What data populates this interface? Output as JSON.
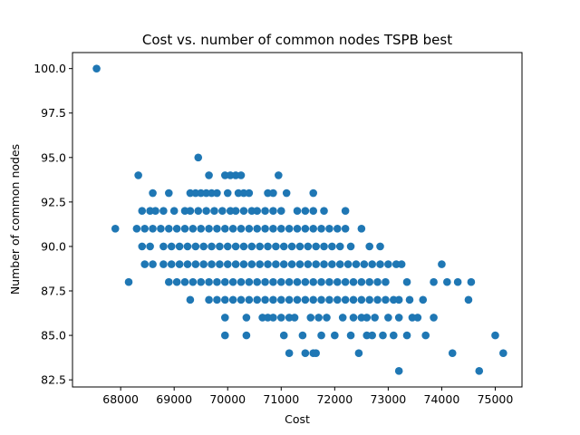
{
  "chart_data": {
    "type": "scatter",
    "title": "Cost vs. number of common nodes TSPB best",
    "xlabel": "Cost",
    "ylabel": "Number of common nodes",
    "xlim": [
      67100,
      75500
    ],
    "ylim": [
      82.1,
      100.9
    ],
    "xticks": [
      68000,
      69000,
      70000,
      71000,
      72000,
      73000,
      74000,
      75000
    ],
    "yticks": [
      82.5,
      85.0,
      87.5,
      90.0,
      92.5,
      95.0,
      97.5,
      100.0
    ],
    "xtick_labels": [
      "68000",
      "69000",
      "70000",
      "71000",
      "72000",
      "73000",
      "74000",
      "75000"
    ],
    "ytick_labels": [
      "82.5",
      "85.0",
      "87.5",
      "90.0",
      "92.5",
      "95.0",
      "97.5",
      "100.0"
    ],
    "grid": false,
    "color": "#1f77b4",
    "series": [
      {
        "points": [
          [
            67550,
            100
          ],
          [
            69450,
            95
          ],
          [
            68330,
            94
          ],
          [
            69650,
            94
          ],
          [
            69950,
            94
          ],
          [
            70050,
            94
          ],
          [
            70150,
            94
          ],
          [
            70250,
            94
          ],
          [
            70950,
            94
          ],
          [
            68600,
            93
          ],
          [
            68900,
            93
          ],
          [
            69300,
            93
          ],
          [
            69400,
            93
          ],
          [
            69500,
            93
          ],
          [
            69600,
            93
          ],
          [
            69700,
            93
          ],
          [
            69800,
            93
          ],
          [
            70000,
            93
          ],
          [
            70200,
            93
          ],
          [
            70300,
            93
          ],
          [
            70400,
            93
          ],
          [
            70750,
            93
          ],
          [
            70850,
            93
          ],
          [
            71100,
            93
          ],
          [
            71600,
            93
          ],
          [
            68400,
            92
          ],
          [
            68550,
            92
          ],
          [
            68650,
            92
          ],
          [
            68800,
            92
          ],
          [
            69000,
            92
          ],
          [
            69200,
            92
          ],
          [
            69300,
            92
          ],
          [
            69450,
            92
          ],
          [
            69600,
            92
          ],
          [
            69750,
            92
          ],
          [
            69900,
            92
          ],
          [
            70050,
            92
          ],
          [
            70150,
            92
          ],
          [
            70300,
            92
          ],
          [
            70450,
            92
          ],
          [
            70550,
            92
          ],
          [
            70700,
            92
          ],
          [
            70850,
            92
          ],
          [
            71000,
            92
          ],
          [
            71300,
            92
          ],
          [
            71450,
            92
          ],
          [
            71600,
            92
          ],
          [
            71800,
            92
          ],
          [
            72200,
            92
          ],
          [
            67900,
            91
          ],
          [
            68300,
            91
          ],
          [
            68450,
            91
          ],
          [
            68600,
            91
          ]
        ]
      },
      {
        "points": [
          [
            68750,
            91
          ],
          [
            68900,
            91
          ],
          [
            69050,
            91
          ],
          [
            69200,
            91
          ],
          [
            69350,
            91
          ],
          [
            69500,
            91
          ],
          [
            69650,
            91
          ],
          [
            69800,
            91
          ],
          [
            69950,
            91
          ],
          [
            70100,
            91
          ],
          [
            70250,
            91
          ],
          [
            70400,
            91
          ],
          [
            70550,
            91
          ],
          [
            70700,
            91
          ],
          [
            70850,
            91
          ],
          [
            71000,
            91
          ],
          [
            71150,
            91
          ],
          [
            71300,
            91
          ],
          [
            71450,
            91
          ],
          [
            71600,
            91
          ],
          [
            71750,
            91
          ],
          [
            71900,
            91
          ],
          [
            72050,
            91
          ],
          [
            72200,
            91
          ],
          [
            72500,
            91
          ],
          [
            68400,
            90
          ],
          [
            68550,
            90
          ],
          [
            68800,
            90
          ],
          [
            68950,
            90
          ],
          [
            69100,
            90
          ],
          [
            69250,
            90
          ],
          [
            69400,
            90
          ],
          [
            69550,
            90
          ],
          [
            69700,
            90
          ],
          [
            69850,
            90
          ],
          [
            70000,
            90
          ],
          [
            70150,
            90
          ],
          [
            70300,
            90
          ],
          [
            70450,
            90
          ],
          [
            70600,
            90
          ],
          [
            70750,
            90
          ],
          [
            70900,
            90
          ],
          [
            71050,
            90
          ],
          [
            71200,
            90
          ],
          [
            71350,
            90
          ],
          [
            71500,
            90
          ],
          [
            71650,
            90
          ],
          [
            71800,
            90
          ],
          [
            71950,
            90
          ],
          [
            72100,
            90
          ],
          [
            72300,
            90
          ],
          [
            72650,
            90
          ],
          [
            72850,
            90
          ],
          [
            68450,
            89
          ],
          [
            68600,
            89
          ],
          [
            68800,
            89
          ],
          [
            68950,
            89
          ],
          [
            69100,
            89
          ],
          [
            69250,
            89
          ],
          [
            69400,
            89
          ],
          [
            69550,
            89
          ],
          [
            69700,
            89
          ],
          [
            69850,
            89
          ],
          [
            70000,
            89
          ],
          [
            70150,
            89
          ],
          [
            70300,
            89
          ],
          [
            70450,
            89
          ],
          [
            70600,
            89
          ],
          [
            70750,
            89
          ],
          [
            70900,
            89
          ],
          [
            71050,
            89
          ],
          [
            71200,
            89
          ],
          [
            71350,
            89
          ],
          [
            71500,
            89
          ],
          [
            71650,
            89
          ],
          [
            71800,
            89
          ],
          [
            71950,
            89
          ],
          [
            72100,
            89
          ],
          [
            72250,
            89
          ],
          [
            72400,
            89
          ],
          [
            72550,
            89
          ],
          [
            72700,
            89
          ],
          [
            72850,
            89
          ],
          [
            73000,
            89
          ],
          [
            73150,
            89
          ],
          [
            73250,
            89
          ],
          [
            74000,
            89
          ],
          [
            68150,
            88
          ],
          [
            68900,
            88
          ],
          [
            69050,
            88
          ],
          [
            69200,
            88
          ],
          [
            69350,
            88
          ],
          [
            69500,
            88
          ],
          [
            69650,
            88
          ],
          [
            69800,
            88
          ],
          [
            69950,
            88
          ],
          [
            70100,
            88
          ],
          [
            70250,
            88
          ],
          [
            70400,
            88
          ],
          [
            70550,
            88
          ],
          [
            70700,
            88
          ],
          [
            70850,
            88
          ],
          [
            71000,
            88
          ],
          [
            71150,
            88
          ],
          [
            71300,
            88
          ],
          [
            71450,
            88
          ],
          [
            71600,
            88
          ],
          [
            71750,
            88
          ],
          [
            71900,
            88
          ],
          [
            72050,
            88
          ],
          [
            72200,
            88
          ],
          [
            72350,
            88
          ],
          [
            72500,
            88
          ],
          [
            72650,
            88
          ],
          [
            72800,
            88
          ],
          [
            72950,
            88
          ],
          [
            73350,
            88
          ],
          [
            73850,
            88
          ],
          [
            74100,
            88
          ],
          [
            74300,
            88
          ],
          [
            74550,
            88
          ]
        ]
      },
      {
        "points": [
          [
            69300,
            87
          ],
          [
            69650,
            87
          ],
          [
            69800,
            87
          ],
          [
            69950,
            87
          ],
          [
            70100,
            87
          ],
          [
            70250,
            87
          ],
          [
            70400,
            87
          ],
          [
            70550,
            87
          ],
          [
            70700,
            87
          ],
          [
            70850,
            87
          ],
          [
            71000,
            87
          ],
          [
            71150,
            87
          ],
          [
            71300,
            87
          ],
          [
            71450,
            87
          ],
          [
            71600,
            87
          ],
          [
            71750,
            87
          ],
          [
            71900,
            87
          ],
          [
            72050,
            87
          ],
          [
            72200,
            87
          ],
          [
            72350,
            87
          ],
          [
            72500,
            87
          ],
          [
            72650,
            87
          ],
          [
            72800,
            87
          ],
          [
            72950,
            87
          ],
          [
            73100,
            87
          ],
          [
            73200,
            87
          ],
          [
            73400,
            87
          ],
          [
            73650,
            87
          ],
          [
            74500,
            87
          ],
          [
            69950,
            86
          ],
          [
            70350,
            86
          ],
          [
            70650,
            86
          ],
          [
            70750,
            86
          ],
          [
            70850,
            86
          ],
          [
            71000,
            86
          ],
          [
            71150,
            86
          ],
          [
            71250,
            86
          ],
          [
            71550,
            86
          ],
          [
            71700,
            86
          ],
          [
            71850,
            86
          ],
          [
            72150,
            86
          ],
          [
            72350,
            86
          ],
          [
            72500,
            86
          ],
          [
            72600,
            86
          ],
          [
            72750,
            86
          ],
          [
            73000,
            86
          ],
          [
            73200,
            86
          ],
          [
            73450,
            86
          ],
          [
            73550,
            86
          ],
          [
            73850,
            86
          ],
          [
            69950,
            85
          ],
          [
            70350,
            85
          ],
          [
            71050,
            85
          ],
          [
            71400,
            85
          ],
          [
            71750,
            85
          ],
          [
            72000,
            85
          ],
          [
            72300,
            85
          ],
          [
            72600,
            85
          ],
          [
            72700,
            85
          ],
          [
            72900,
            85
          ],
          [
            73100,
            85
          ],
          [
            73350,
            85
          ],
          [
            73700,
            85
          ],
          [
            75000,
            85
          ],
          [
            71150,
            84
          ],
          [
            71450,
            84
          ],
          [
            71600,
            84
          ],
          [
            71650,
            84
          ],
          [
            72450,
            84
          ],
          [
            74200,
            84
          ],
          [
            75150,
            84
          ],
          [
            73200,
            83
          ],
          [
            74700,
            83
          ]
        ]
      }
    ]
  }
}
